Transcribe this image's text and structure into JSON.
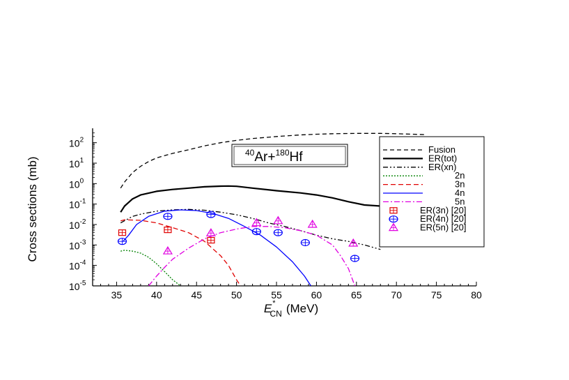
{
  "chart_data": {
    "type": "line",
    "title": "",
    "xlabel": "E",
    "xlabel_sup": "*",
    "xlabel_sub": "CN",
    "xlabel_unit": "(MeV)",
    "ylabel": "Cross sections (mb)",
    "xlim": [
      32,
      80
    ],
    "ylim_log10": [
      -5,
      2.5
    ],
    "y_scale": "log",
    "grid": false,
    "legend_position": "top-right",
    "x_ticks": [
      35,
      40,
      45,
      50,
      55,
      60,
      65,
      70,
      75,
      80
    ],
    "y_tick_labels": [
      {
        "base": "10",
        "exp": "2",
        "log": 2
      },
      {
        "base": "10",
        "exp": "1",
        "log": 1
      },
      {
        "base": "10",
        "exp": "0",
        "log": 0
      },
      {
        "base": "10",
        "exp": "-1",
        "log": -1
      },
      {
        "base": "10",
        "exp": "-2",
        "log": -2
      },
      {
        "base": "10",
        "exp": "-3",
        "log": -3
      },
      {
        "base": "10",
        "exp": "-4",
        "log": -4
      },
      {
        "base": "10",
        "exp": "-5",
        "log": -5
      }
    ],
    "annotation": {
      "sup1": "40",
      "el1": "Ar+",
      "sup2": "180",
      "el2": "Hf"
    },
    "series": [
      {
        "name": "Fusion",
        "color": "#000000",
        "dash": "6,4",
        "width": 1.3,
        "x": [
          35.5,
          36,
          37,
          38,
          39,
          40,
          42,
          44,
          46,
          48,
          50,
          52,
          55,
          58,
          60,
          62,
          65,
          68,
          70,
          73.5
        ],
        "y": [
          0.6,
          1.2,
          3.5,
          7,
          12,
          18,
          30,
          45,
          70,
          100,
          130,
          160,
          200,
          240,
          260,
          275,
          285,
          285,
          275,
          250
        ]
      },
      {
        "name": "ER(tot)",
        "color": "#000000",
        "dash": "",
        "width": 2.2,
        "x": [
          35.5,
          36,
          37,
          38,
          40,
          42,
          44,
          46,
          48,
          49,
          50,
          52,
          55,
          58,
          60,
          62,
          64,
          66,
          68
        ],
        "y": [
          0.04,
          0.08,
          0.18,
          0.28,
          0.42,
          0.52,
          0.6,
          0.7,
          0.75,
          0.76,
          0.74,
          0.6,
          0.45,
          0.35,
          0.28,
          0.2,
          0.13,
          0.09,
          0.08
        ]
      },
      {
        "name": "ER(xn)",
        "color": "#000000",
        "dash": "7,3,2,3,2,3",
        "width": 1.3,
        "x": [
          35.5,
          37,
          38,
          40,
          42,
          44,
          46,
          48,
          50,
          52,
          54,
          56,
          58,
          60,
          62,
          64,
          66,
          68
        ],
        "y": [
          0.012,
          0.025,
          0.032,
          0.045,
          0.052,
          0.055,
          0.05,
          0.04,
          0.03,
          0.02,
          0.012,
          0.008,
          0.005,
          0.003,
          0.002,
          0.0015,
          0.001,
          0.0006
        ]
      },
      {
        "name": "2n",
        "color": "#008000",
        "dash": "2,2",
        "width": 1.3,
        "x": [
          35.5,
          36,
          37,
          38,
          39,
          40,
          41,
          42,
          43
        ],
        "y": [
          0.0005,
          0.00055,
          0.0005,
          0.0004,
          0.00025,
          0.00012,
          5e-05,
          2e-05,
          1e-05
        ]
      },
      {
        "name": "3n",
        "color": "#e00000",
        "dash": "7,4",
        "width": 1.3,
        "x": [
          35.5,
          36,
          38,
          40,
          42,
          44,
          46,
          48,
          49,
          50,
          50.5
        ],
        "y": [
          0.015,
          0.017,
          0.016,
          0.012,
          0.007,
          0.004,
          0.0015,
          0.0003,
          0.0001,
          2e-05,
          1e-05
        ]
      },
      {
        "name": "4n",
        "color": "#0000ff",
        "dash": "",
        "width": 1.3,
        "x": [
          35.8,
          36.5,
          37.5,
          39,
          41,
          43,
          45,
          47,
          49,
          51,
          53,
          55,
          57,
          58.5,
          59.3
        ],
        "y": [
          0.0015,
          0.003,
          0.01,
          0.025,
          0.045,
          0.052,
          0.048,
          0.035,
          0.02,
          0.008,
          0.003,
          0.0008,
          0.00015,
          3e-05,
          1e-05
        ]
      },
      {
        "name": "5n",
        "color": "#e000e0",
        "dash": "8,3,2,3",
        "width": 1.3,
        "x": [
          39,
          40,
          41,
          42,
          44,
          46,
          48,
          50,
          52,
          54,
          56,
          58,
          60,
          62,
          63,
          64,
          64.8
        ],
        "y": [
          1e-05,
          3e-05,
          8e-05,
          0.0002,
          0.0007,
          0.002,
          0.004,
          0.006,
          0.008,
          0.008,
          0.007,
          0.005,
          0.003,
          0.001,
          0.0003,
          7e-05,
          1e-05
        ]
      }
    ],
    "markers": [
      {
        "name": "ER(3n) [20]",
        "shape": "square",
        "color": "#e00000",
        "points": [
          {
            "x": 35.7,
            "y": 0.004
          },
          {
            "x": 41.4,
            "y": 0.0055
          },
          {
            "x": 46.8,
            "y": 0.0017
          }
        ]
      },
      {
        "name": "ER(4n) [20]",
        "shape": "circle",
        "color": "#0000ff",
        "points": [
          {
            "x": 35.7,
            "y": 0.0015
          },
          {
            "x": 41.4,
            "y": 0.025
          },
          {
            "x": 46.8,
            "y": 0.031
          },
          {
            "x": 52.5,
            "y": 0.0045
          },
          {
            "x": 55.2,
            "y": 0.004
          },
          {
            "x": 58.6,
            "y": 0.0013
          },
          {
            "x": 64.8,
            "y": 0.00022
          }
        ]
      },
      {
        "name": "ER(5n) [20]",
        "shape": "triangle",
        "color": "#e000e0",
        "points": [
          {
            "x": 41.4,
            "y": 0.0005
          },
          {
            "x": 46.8,
            "y": 0.0038
          },
          {
            "x": 52.5,
            "y": 0.012
          },
          {
            "x": 55.2,
            "y": 0.015
          },
          {
            "x": 59.5,
            "y": 0.01
          },
          {
            "x": 64.6,
            "y": 0.0012
          }
        ]
      }
    ]
  }
}
